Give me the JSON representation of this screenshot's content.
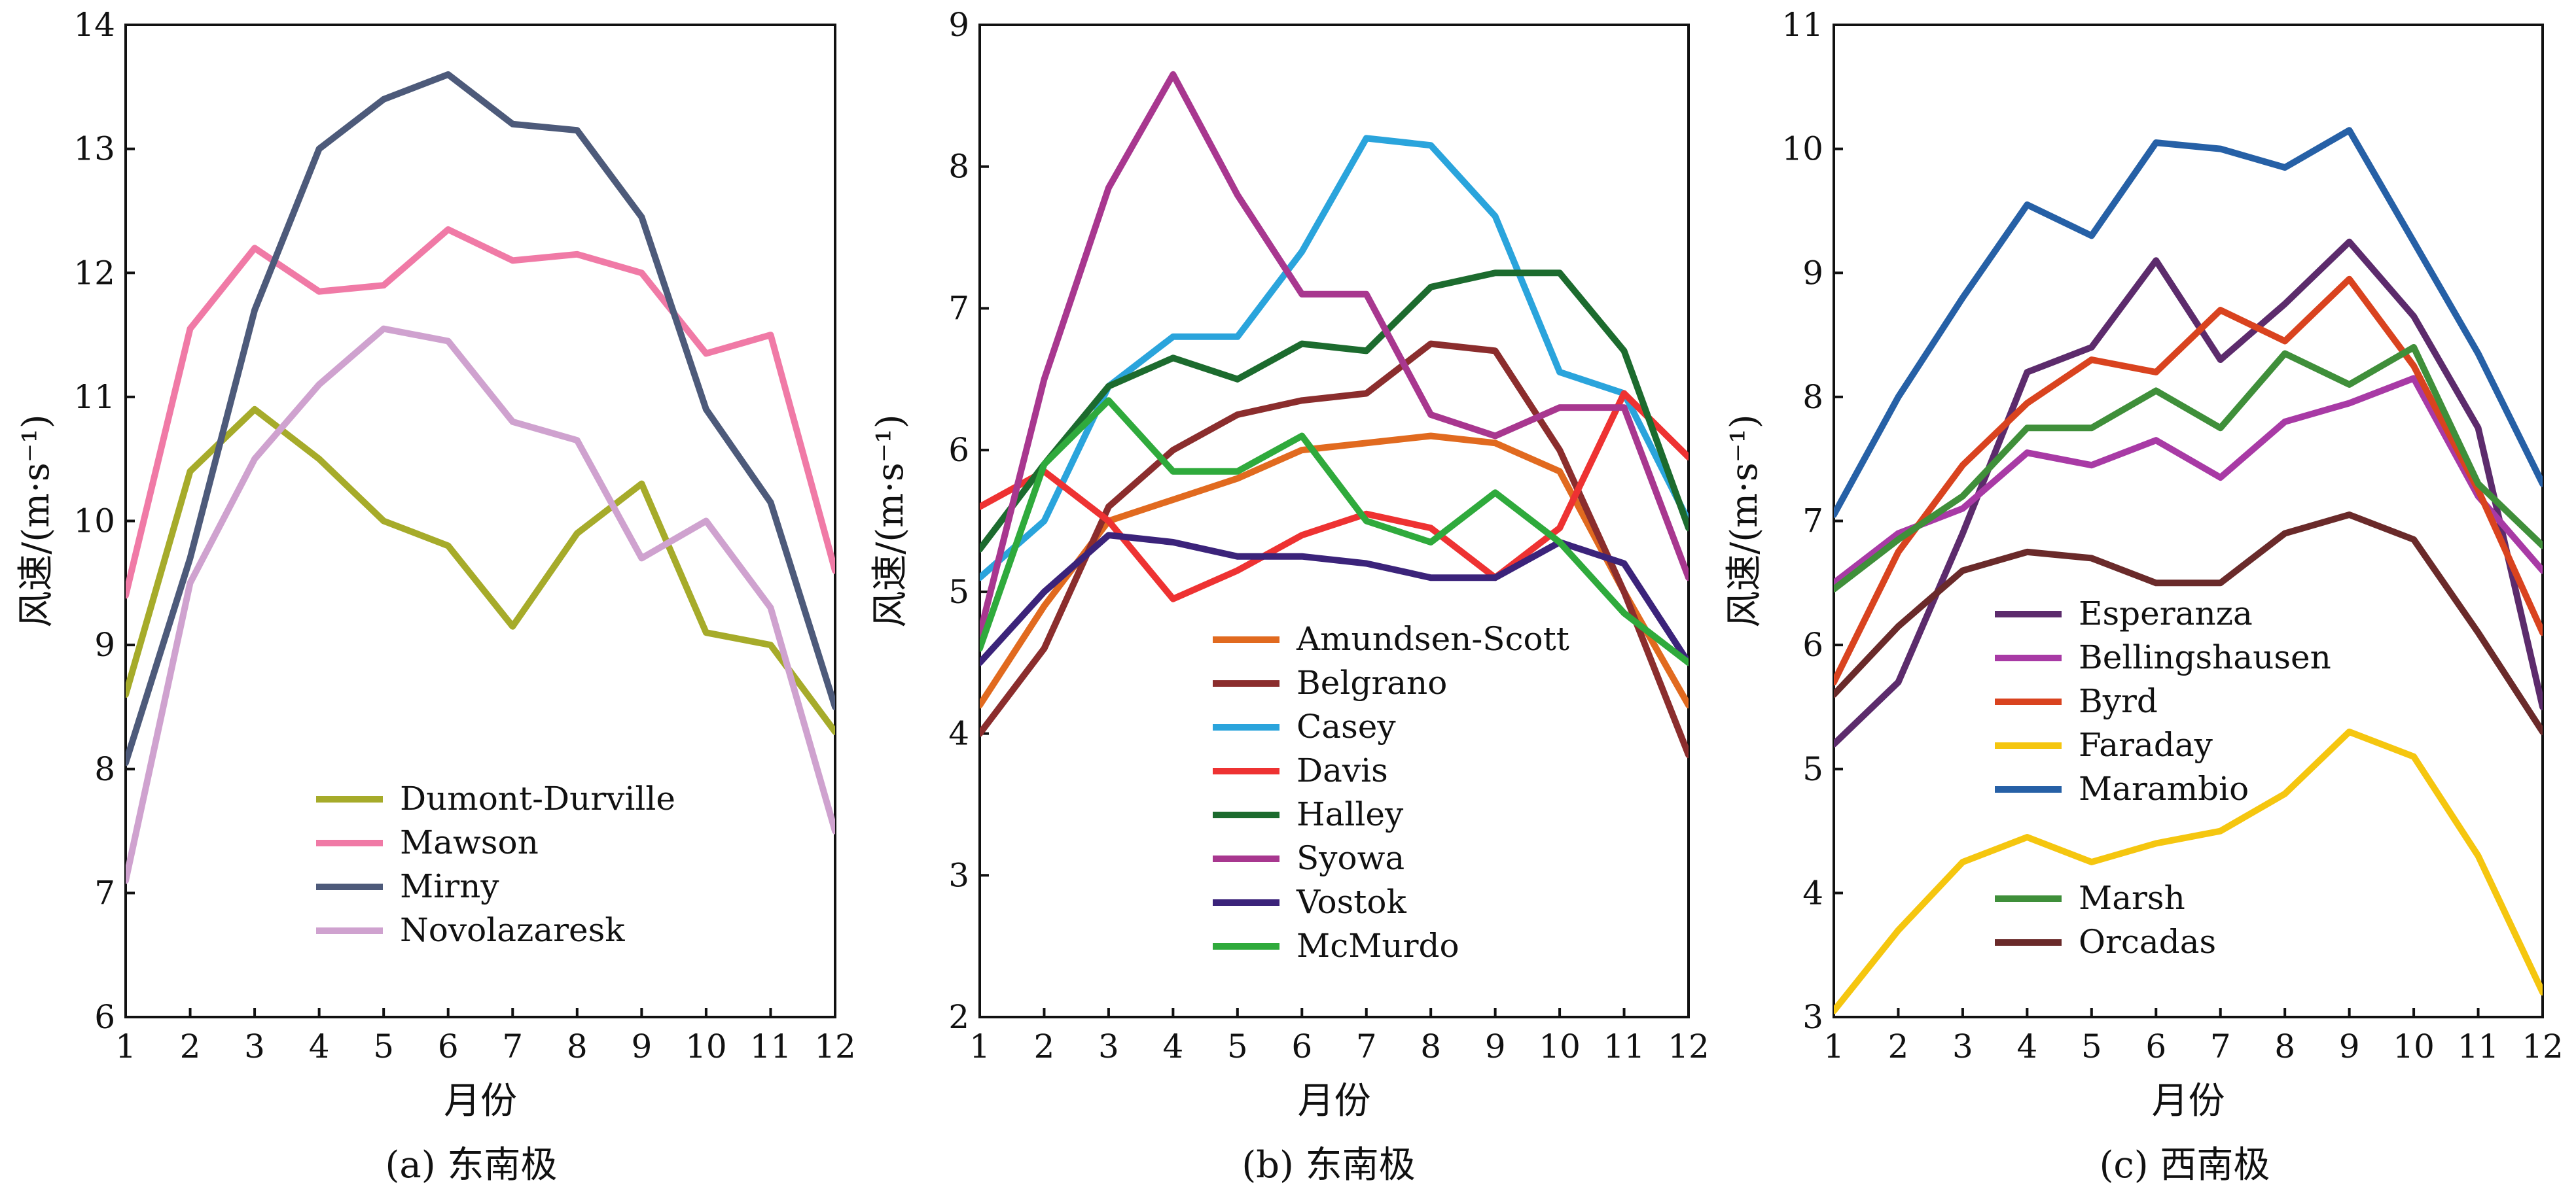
{
  "chart_data": [
    {
      "type": "line",
      "caption": "(a) 东南极",
      "xlabel": "月份",
      "ylabel": "风速/(m·s⁻¹)",
      "x": [
        1,
        2,
        3,
        4,
        5,
        6,
        7,
        8,
        9,
        10,
        11,
        12
      ],
      "xlim": [
        1,
        12
      ],
      "ylim": [
        6,
        14
      ],
      "yticks": [
        6,
        7,
        8,
        9,
        10,
        11,
        12,
        13,
        14
      ],
      "legend_position": "bottom-center",
      "series": [
        {
          "name": "Dumont-Durville",
          "color": "#a6ab2a",
          "values": [
            8.6,
            10.4,
            10.9,
            10.5,
            10.0,
            9.8,
            9.15,
            9.9,
            10.3,
            9.1,
            9.0,
            8.3
          ]
        },
        {
          "name": "Mawson",
          "color": "#f07aa6",
          "values": [
            9.4,
            11.55,
            12.2,
            11.85,
            11.9,
            12.35,
            12.1,
            12.15,
            12.0,
            11.35,
            11.5,
            9.6
          ]
        },
        {
          "name": "Mirny",
          "color": "#4d5a7a",
          "values": [
            8.05,
            9.7,
            11.7,
            13.0,
            13.4,
            13.6,
            13.2,
            13.15,
            12.45,
            10.9,
            10.15,
            8.5
          ]
        },
        {
          "name": "Novolazaresk",
          "color": "#cfa2cf",
          "values": [
            7.1,
            9.5,
            10.5,
            11.1,
            11.55,
            11.45,
            10.8,
            10.65,
            9.7,
            10.0,
            9.3,
            7.5
          ]
        }
      ]
    },
    {
      "type": "line",
      "caption": "(b) 东南极",
      "xlabel": "月份",
      "ylabel": "风速/(m·s⁻¹)",
      "x": [
        1,
        2,
        3,
        4,
        5,
        6,
        7,
        8,
        9,
        10,
        11,
        12
      ],
      "xlim": [
        1,
        12
      ],
      "ylim": [
        2,
        9
      ],
      "yticks": [
        2,
        3,
        4,
        5,
        6,
        7,
        8,
        9
      ],
      "legend_position": "bottom-center",
      "series": [
        {
          "name": "Amundsen-Scott",
          "color": "#e16a1f",
          "values": [
            4.2,
            4.9,
            5.5,
            5.65,
            5.8,
            6.0,
            6.05,
            6.1,
            6.05,
            5.85,
            5.0,
            4.2
          ]
        },
        {
          "name": "Belgrano",
          "color": "#8b2d2d",
          "values": [
            4.0,
            4.6,
            5.6,
            6.0,
            6.25,
            6.35,
            6.4,
            6.75,
            6.7,
            6.0,
            5.0,
            3.85
          ]
        },
        {
          "name": "Casey",
          "color": "#2aa4dc",
          "values": [
            5.1,
            5.5,
            6.45,
            6.8,
            6.8,
            7.4,
            8.2,
            8.15,
            7.65,
            6.55,
            6.4,
            5.5
          ]
        },
        {
          "name": "Davis",
          "color": "#ee3232",
          "values": [
            5.6,
            5.85,
            5.5,
            4.95,
            5.15,
            5.4,
            5.55,
            5.45,
            5.1,
            5.45,
            6.4,
            5.95
          ]
        },
        {
          "name": "Halley",
          "color": "#1c6b2e",
          "values": [
            5.3,
            5.9,
            6.45,
            6.65,
            6.5,
            6.75,
            6.7,
            7.15,
            7.25,
            7.25,
            6.7,
            5.45
          ]
        },
        {
          "name": "Syowa",
          "color": "#a8378f",
          "values": [
            4.7,
            6.5,
            7.85,
            8.65,
            7.8,
            7.1,
            7.1,
            6.25,
            6.1,
            6.3,
            6.3,
            5.1
          ]
        },
        {
          "name": "Vostok",
          "color": "#3b237a",
          "values": [
            4.5,
            5.0,
            5.4,
            5.35,
            5.25,
            5.25,
            5.2,
            5.1,
            5.1,
            5.35,
            5.2,
            4.5
          ]
        },
        {
          "name": "McMurdo",
          "color": "#2faa3c",
          "values": [
            4.6,
            5.9,
            6.35,
            5.85,
            5.85,
            6.1,
            5.5,
            5.35,
            5.7,
            5.35,
            4.85,
            4.5
          ]
        }
      ]
    },
    {
      "type": "line",
      "caption": "(c) 西南极",
      "xlabel": "月份",
      "ylabel": "风速/(m·s⁻¹)",
      "x": [
        1,
        2,
        3,
        4,
        5,
        6,
        7,
        8,
        9,
        10,
        11,
        12
      ],
      "xlim": [
        1,
        12
      ],
      "ylim": [
        3,
        11
      ],
      "yticks": [
        3,
        4,
        5,
        6,
        7,
        8,
        9,
        10,
        11
      ],
      "legend_position": "bottom-center",
      "series": [
        {
          "name": "Esperanza",
          "color": "#5c2b6c",
          "values": [
            5.2,
            5.7,
            6.9,
            8.2,
            8.4,
            9.1,
            8.3,
            8.75,
            9.25,
            8.65,
            7.75,
            5.5
          ]
        },
        {
          "name": "Bellingshausen",
          "color": "#a83aa5",
          "values": [
            6.5,
            6.9,
            7.1,
            7.55,
            7.45,
            7.65,
            7.35,
            7.8,
            7.95,
            8.15,
            7.2,
            6.6
          ]
        },
        {
          "name": "Byrd",
          "color": "#d9431f",
          "values": [
            5.7,
            6.75,
            7.45,
            7.95,
            8.3,
            8.2,
            8.7,
            8.45,
            8.95,
            8.25,
            7.25,
            6.1
          ]
        },
        {
          "name": "Faraday",
          "color": "#f5c60f",
          "values": [
            3.05,
            3.7,
            4.25,
            4.45,
            4.25,
            4.4,
            4.5,
            4.8,
            5.3,
            5.1,
            4.3,
            3.2
          ]
        },
        {
          "name": "Marambio",
          "color": "#2660a6",
          "values": [
            7.05,
            8.0,
            8.8,
            9.55,
            9.3,
            10.05,
            10.0,
            9.85,
            10.15,
            9.25,
            8.35,
            7.3
          ]
        },
        {
          "name": "Marsh",
          "color": "#3f8f3a",
          "values": [
            6.45,
            6.85,
            7.2,
            7.75,
            7.75,
            8.05,
            7.75,
            8.35,
            8.1,
            8.4,
            7.3,
            6.8
          ]
        },
        {
          "name": "Orcadas",
          "color": "#6a2a2a",
          "values": [
            5.6,
            6.15,
            6.6,
            6.75,
            6.7,
            6.5,
            6.5,
            6.9,
            7.05,
            6.85,
            6.1,
            5.3
          ]
        }
      ]
    }
  ]
}
